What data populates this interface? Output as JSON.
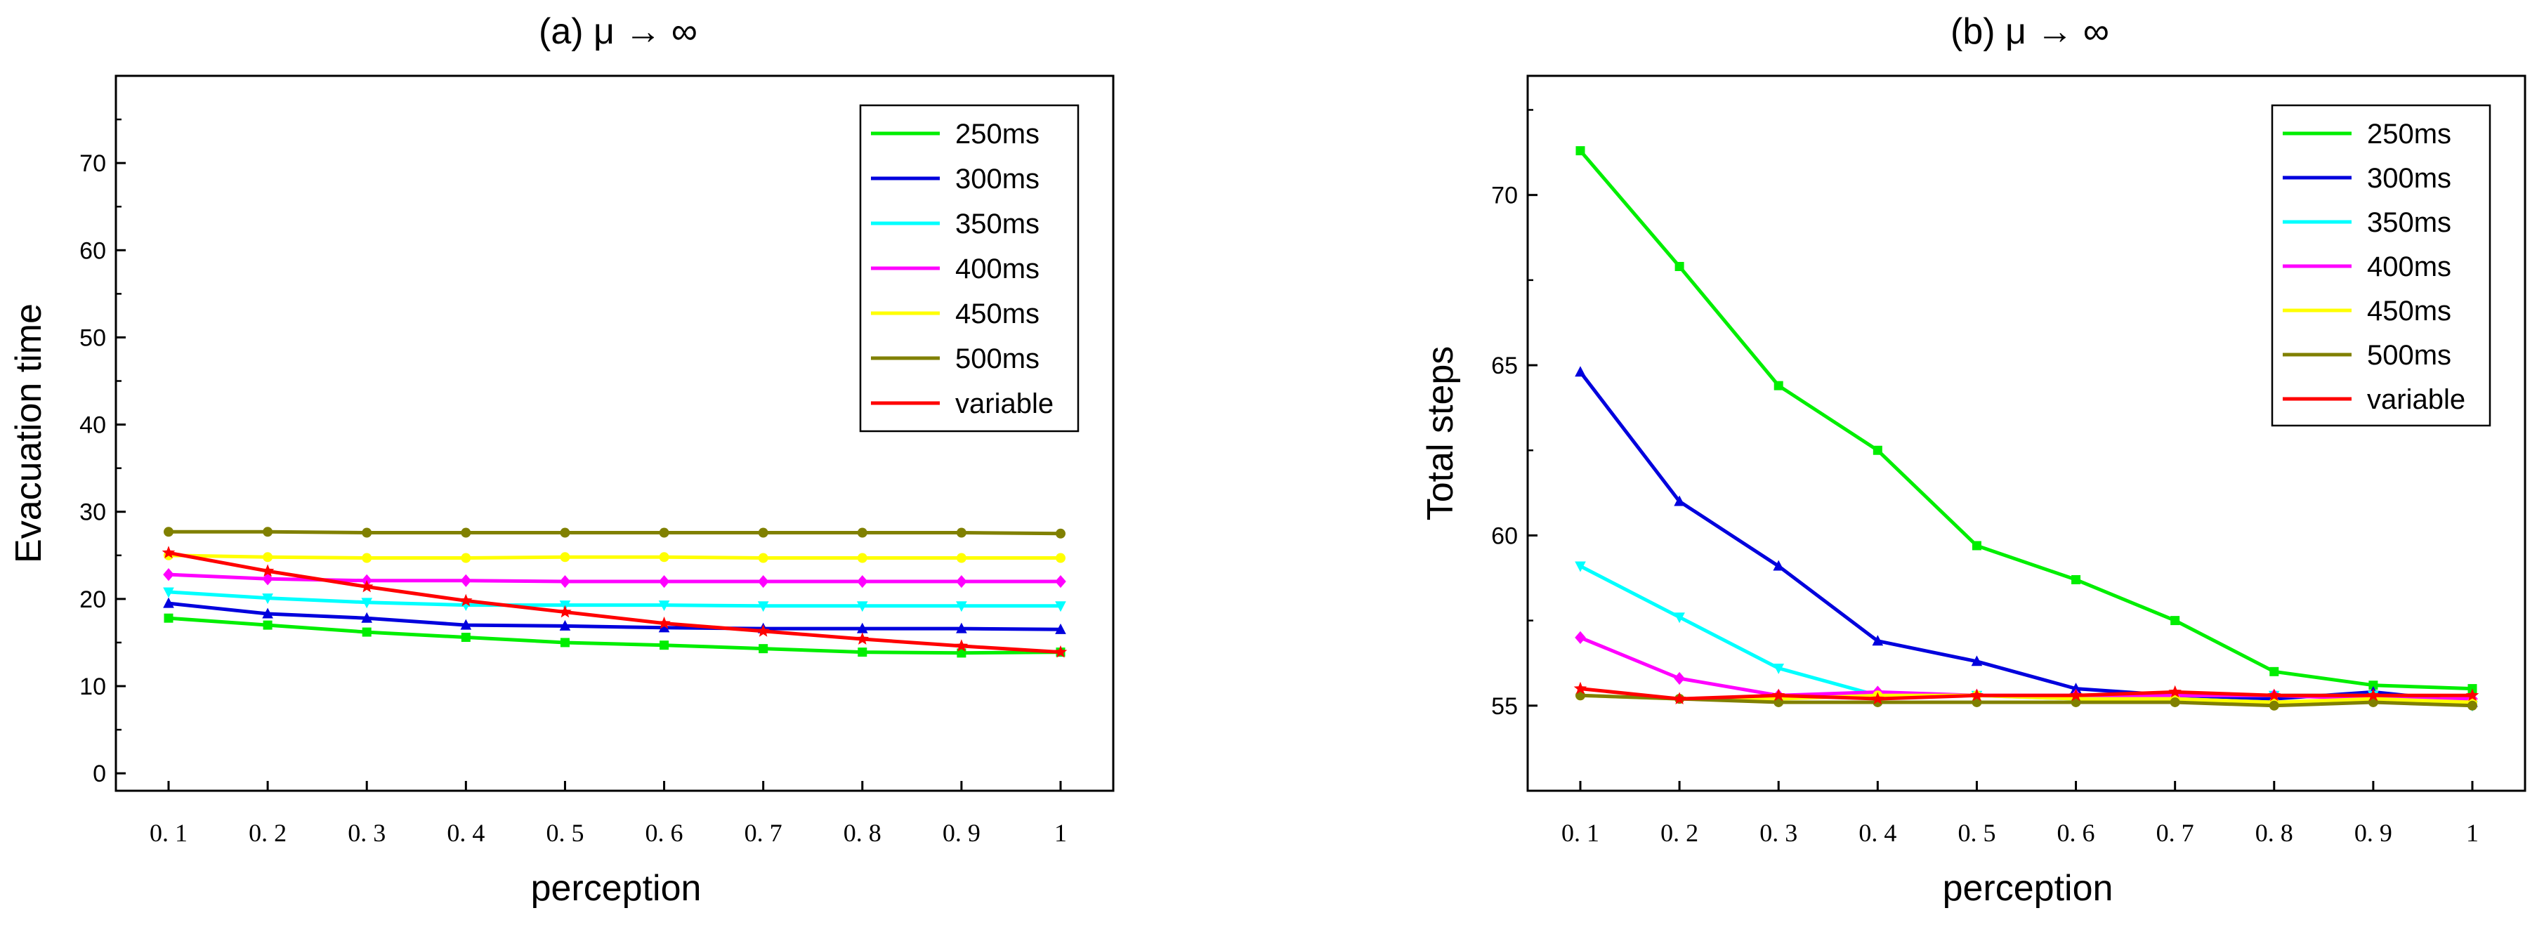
{
  "chart_data": [
    {
      "type": "line",
      "title": "(a) μ → ∞",
      "xlabel": "perception",
      "ylabel": "Evacuation time",
      "categories": [
        "0.1",
        "0.2",
        "0.3",
        "0.4",
        "0.5",
        "0.6",
        "0.7",
        "0.8",
        "0.9",
        "1"
      ],
      "x_tick_labels": [
        "0. 1",
        "0. 2",
        "0. 3",
        "0. 4",
        "0. 5",
        "0. 6",
        "0. 7",
        "0. 8",
        "0. 9",
        "1"
      ],
      "ylim": [
        -2,
        80
      ],
      "yticks": [
        0,
        10,
        20,
        30,
        40,
        50,
        60,
        70
      ],
      "legend_position": "top-right",
      "series": [
        {
          "name": "250ms",
          "color": "#00ee00",
          "marker": "square",
          "values": [
            17.8,
            17.0,
            16.2,
            15.6,
            15.0,
            14.7,
            14.3,
            13.9,
            13.8,
            13.9
          ]
        },
        {
          "name": "300ms",
          "color": "#0000dd",
          "marker": "triangle-up",
          "values": [
            19.5,
            18.3,
            17.8,
            17.0,
            16.9,
            16.7,
            16.6,
            16.6,
            16.6,
            16.5
          ]
        },
        {
          "name": "350ms",
          "color": "#00ffff",
          "marker": "triangle-down",
          "values": [
            20.8,
            20.1,
            19.6,
            19.3,
            19.3,
            19.3,
            19.2,
            19.2,
            19.2,
            19.2
          ]
        },
        {
          "name": "400ms",
          "color": "#ff00ff",
          "marker": "diamond",
          "values": [
            22.8,
            22.3,
            22.1,
            22.1,
            22.0,
            22.0,
            22.0,
            22.0,
            22.0,
            22.0
          ]
        },
        {
          "name": "450ms",
          "color": "#ffff00",
          "marker": "circle",
          "values": [
            25.0,
            24.8,
            24.7,
            24.7,
            24.8,
            24.8,
            24.7,
            24.7,
            24.7,
            24.7
          ]
        },
        {
          "name": "500ms",
          "color": "#808000",
          "marker": "circle",
          "values": [
            27.7,
            27.7,
            27.6,
            27.6,
            27.6,
            27.6,
            27.6,
            27.6,
            27.6,
            27.5
          ]
        },
        {
          "name": "variable",
          "color": "#ff0000",
          "marker": "star",
          "values": [
            25.3,
            23.2,
            21.4,
            19.8,
            18.5,
            17.2,
            16.3,
            15.4,
            14.6,
            13.9
          ]
        }
      ]
    },
    {
      "type": "line",
      "title": "(b) μ → ∞",
      "xlabel": "perception",
      "ylabel": "Total steps",
      "categories": [
        "0.1",
        "0.2",
        "0.3",
        "0.4",
        "0.5",
        "0.6",
        "0.7",
        "0.8",
        "0.9",
        "1"
      ],
      "x_tick_labels": [
        "0. 1",
        "0. 2",
        "0. 3",
        "0. 4",
        "0. 5",
        "0. 6",
        "0. 7",
        "0. 8",
        "0. 9",
        "1"
      ],
      "ylim": [
        52.5,
        73.5
      ],
      "yticks": [
        55,
        60,
        65,
        70
      ],
      "legend_position": "top-right",
      "series": [
        {
          "name": "250ms",
          "color": "#00ee00",
          "marker": "square",
          "values": [
            71.3,
            67.9,
            64.4,
            62.5,
            59.7,
            58.7,
            57.5,
            56.0,
            55.6,
            55.5
          ]
        },
        {
          "name": "300ms",
          "color": "#0000dd",
          "marker": "triangle-up",
          "values": [
            64.8,
            61.0,
            59.1,
            56.9,
            56.3,
            55.5,
            55.3,
            55.2,
            55.4,
            55.1
          ]
        },
        {
          "name": "350ms",
          "color": "#00ffff",
          "marker": "triangle-down",
          "values": [
            59.1,
            57.6,
            56.1,
            55.3,
            55.3,
            55.2,
            55.3,
            55.3,
            55.3,
            55.0
          ]
        },
        {
          "name": "400ms",
          "color": "#ff00ff",
          "marker": "diamond",
          "values": [
            57.0,
            55.8,
            55.3,
            55.4,
            55.3,
            55.3,
            55.3,
            55.3,
            55.2,
            55.2
          ]
        },
        {
          "name": "450ms",
          "color": "#ffff00",
          "marker": "circle",
          "values": [
            55.3,
            55.2,
            55.2,
            55.3,
            55.3,
            55.2,
            55.2,
            55.1,
            55.2,
            55.1
          ]
        },
        {
          "name": "500ms",
          "color": "#808000",
          "marker": "circle",
          "values": [
            55.3,
            55.2,
            55.1,
            55.1,
            55.1,
            55.1,
            55.1,
            55.0,
            55.1,
            55.0
          ]
        },
        {
          "name": "variable",
          "color": "#ff0000",
          "marker": "star",
          "values": [
            55.5,
            55.2,
            55.3,
            55.2,
            55.3,
            55.3,
            55.4,
            55.3,
            55.3,
            55.3
          ]
        }
      ]
    }
  ]
}
